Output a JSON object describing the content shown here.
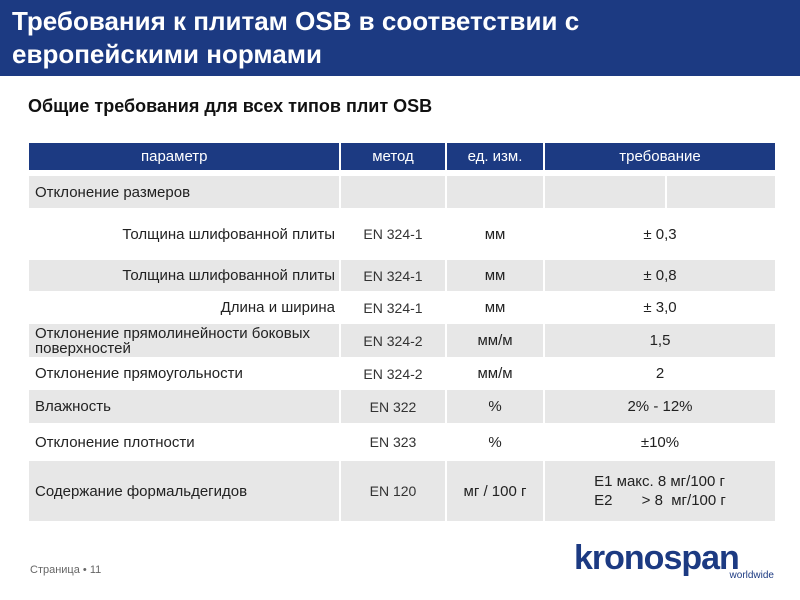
{
  "header": {
    "title": "Требования к плитам OSB в соответствии с европейскими нормами"
  },
  "subtitle": "Общие требования для всех типов плит OSB",
  "table": {
    "columns": [
      "параметр",
      "метод",
      "ед. изм.",
      "требование"
    ],
    "rows": [
      {
        "parameter": "Отклонение размеров",
        "method": "",
        "unit": "",
        "requirement": "",
        "indent": false,
        "shade": "shaded",
        "split": true
      },
      {
        "parameter": "Толщина шлифованной плиты",
        "method": "EN 324-1",
        "unit": "мм",
        "requirement": "± 0,3",
        "indent": true,
        "shade": "white"
      },
      {
        "parameter": "Толщина шлифованной плиты",
        "method": "EN 324-1",
        "unit": "мм",
        "requirement": "± 0,8",
        "indent": true,
        "shade": "shaded"
      },
      {
        "parameter": "Длина и ширина",
        "method": "EN 324-1",
        "unit": "мм",
        "requirement": "± 3,0",
        "indent": true,
        "shade": "white"
      },
      {
        "parameter": "Отклонение прямолинейности боковых поверхностей",
        "method": "EN 324-2",
        "unit": "мм/м",
        "requirement": "1,5",
        "indent": false,
        "shade": "shaded"
      },
      {
        "parameter": "Отклонение прямоугольности",
        "method": "EN 324-2",
        "unit": "мм/м",
        "requirement": "2",
        "indent": false,
        "shade": "white"
      },
      {
        "parameter": "Влажность",
        "method": "EN 322",
        "unit": "%",
        "requirement": "2% - 12%",
        "indent": false,
        "shade": "shaded"
      },
      {
        "parameter": "Отклонение плотности",
        "method": "EN 323",
        "unit": "%",
        "requirement": "±10%",
        "indent": false,
        "shade": "white"
      },
      {
        "parameter": "Содержание формальдегидов",
        "method": "EN 120",
        "unit": "мг / 100 г",
        "requirement_lines": [
          "E1 макс. 8 мг/100 г",
          "E2       > 8  мг/100 г"
        ],
        "indent": false,
        "shade": "shaded"
      }
    ]
  },
  "footer": {
    "page_label": "Страница • 11"
  },
  "logo": {
    "main": "kronospan",
    "sub": "worldwide"
  },
  "colors": {
    "header_bg": "#1c3a82",
    "row_shaded": "#e7e7e7"
  }
}
